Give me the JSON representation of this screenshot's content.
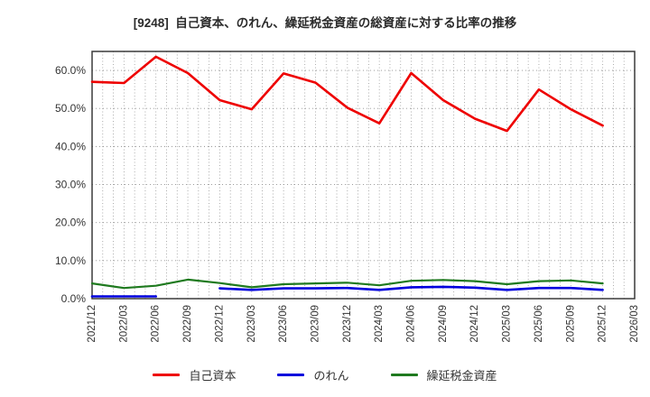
{
  "chart_data": {
    "type": "line",
    "title": "[9248]  自己資本、のれん、繰延税金資産の総資産に対する比率の推移",
    "categories": [
      "2021/12",
      "2022/03",
      "2022/06",
      "2022/09",
      "2022/12",
      "2023/03",
      "2023/06",
      "2023/09",
      "2023/12",
      "2024/03",
      "2024/06",
      "2024/09",
      "2024/12",
      "2025/03",
      "2025/06",
      "2025/09",
      "2025/12",
      "2026/03"
    ],
    "series": [
      {
        "key": "equity-ratio",
        "name": "自己資本",
        "color": "#ee0000",
        "width": 2.6,
        "values": [
          57.0,
          56.7,
          63.6,
          59.3,
          52.2,
          49.8,
          59.2,
          56.8,
          50.2,
          46.1,
          59.3,
          52.2,
          47.3,
          44.1,
          55.0,
          49.8,
          45.5,
          null
        ]
      },
      {
        "key": "goodwill-ratio",
        "name": "のれん",
        "color": "#0000dd",
        "width": 2.6,
        "values": [
          0.6,
          0.6,
          0.6,
          null,
          2.7,
          2.3,
          2.7,
          2.7,
          2.8,
          2.3,
          3.0,
          3.1,
          2.9,
          2.3,
          2.8,
          2.8,
          2.3,
          null
        ]
      },
      {
        "key": "deferred-tax-ratio",
        "name": "繰延税金資産",
        "color": "#1f7a1f",
        "width": 2.2,
        "values": [
          4.0,
          2.8,
          3.4,
          5.0,
          4.1,
          3.0,
          3.8,
          4.0,
          4.2,
          3.5,
          4.7,
          4.9,
          4.6,
          3.8,
          4.6,
          4.8,
          4.0,
          null
        ]
      }
    ],
    "xlabel": "",
    "ylabel": "",
    "ylim": [
      0,
      65
    ],
    "yticks": [
      0,
      10,
      20,
      30,
      40,
      50,
      60
    ],
    "ytick_labels": [
      "0.0%",
      "10.0%",
      "20.0%",
      "30.0%",
      "40.0%",
      "50.0%",
      "60.0%"
    ],
    "grid": "dotted",
    "x_minor_gridlines": "monthly",
    "legend_position": "bottom"
  }
}
